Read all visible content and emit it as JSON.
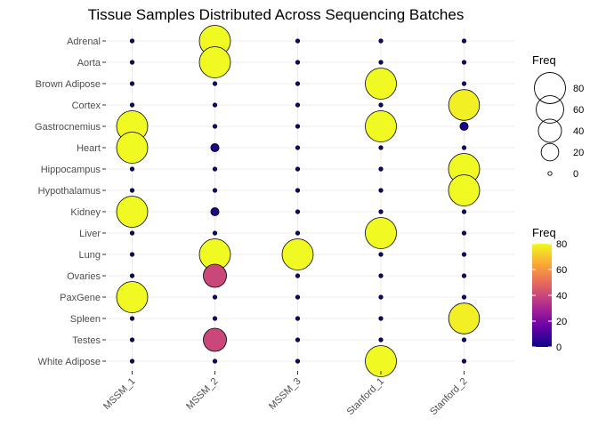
{
  "chart_data": {
    "type": "scatter",
    "title": "Tissue Samples Distributed Across Sequencing Batches",
    "xlabel": "",
    "ylabel": "",
    "x_categories": [
      "MSSM_1",
      "MSSM_2",
      "MSSM_3",
      "Stanford_1",
      "Stanford_2"
    ],
    "y_categories": [
      "Adrenal",
      "Aorta",
      "Brown Adipose",
      "Cortex",
      "Gastrocnemius",
      "Heart",
      "Hippocampus",
      "Hypothalamus",
      "Kidney",
      "Liver",
      "Lung",
      "Ovaries",
      "PaxGene",
      "Spleen",
      "Testes",
      "White Adipose"
    ],
    "freq": {
      "Adrenal": [
        0,
        80,
        0,
        0,
        0
      ],
      "Aorta": [
        0,
        80,
        0,
        0,
        0
      ],
      "Brown Adipose": [
        0,
        0,
        0,
        80,
        0
      ],
      "Cortex": [
        0,
        0,
        0,
        0,
        78
      ],
      "Gastrocnemius": [
        80,
        0,
        0,
        80,
        2
      ],
      "Heart": [
        80,
        2,
        0,
        0,
        0
      ],
      "Hippocampus": [
        0,
        0,
        0,
        0,
        80
      ],
      "Hypothalamus": [
        0,
        0,
        0,
        0,
        80
      ],
      "Kidney": [
        80,
        2,
        0,
        0,
        0
      ],
      "Liver": [
        0,
        0,
        0,
        80,
        0
      ],
      "Lung": [
        0,
        80,
        80,
        0,
        0
      ],
      "Ovaries": [
        0,
        40,
        0,
        0,
        0
      ],
      "PaxGene": [
        80,
        0,
        0,
        0,
        0
      ],
      "Spleen": [
        0,
        0,
        0,
        0,
        78
      ],
      "Testes": [
        0,
        40,
        0,
        0,
        0
      ],
      "White Adipose": [
        0,
        0,
        0,
        80,
        0
      ]
    },
    "size_legend": {
      "title": "Freq",
      "breaks": [
        80,
        60,
        40,
        20,
        0
      ]
    },
    "color_legend": {
      "title": "Freq",
      "breaks": [
        80,
        60,
        40,
        20,
        0
      ],
      "range": [
        0,
        80
      ],
      "palette": "plasma"
    },
    "grid": true,
    "legend_position": "right"
  }
}
